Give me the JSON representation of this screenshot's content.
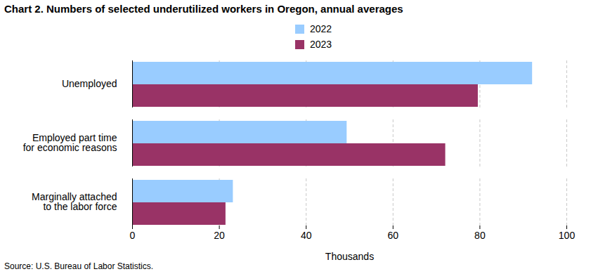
{
  "chart_data": {
    "type": "bar",
    "orientation": "horizontal",
    "title": "Chart 2. Numbers of selected underutilized workers in Oregon, annual averages",
    "caption": "Source: U.S. Bureau of Labor Statistics.",
    "x_label": "Thousands",
    "categories": [
      "Unemployed",
      "Employed part time\nfor economic reasons",
      "Marginally attached\nto the labor force"
    ],
    "series": [
      {
        "name": "2022",
        "color": "#99ccff",
        "values": [
          92.1,
          49.4,
          23.2
        ]
      },
      {
        "name": "2023",
        "color": "#993366",
        "values": [
          79.6,
          72.1,
          21.5
        ]
      }
    ],
    "xlim": [
      0,
      100
    ],
    "xticks": [
      0,
      20,
      40,
      60,
      80,
      100
    ],
    "grid": true,
    "legend": "top"
  }
}
